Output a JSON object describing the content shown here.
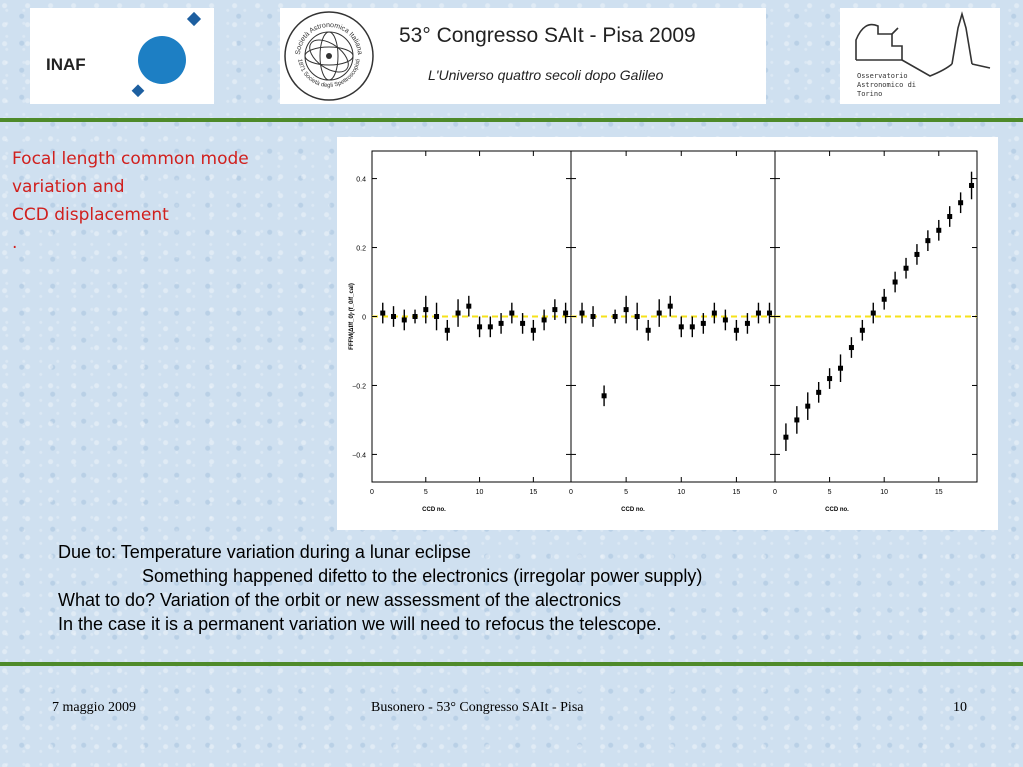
{
  "header": {
    "inaf_logo_text": "INAF",
    "conference_title": "53° Congresso SAIt - Pisa 2009",
    "conference_subtitle": "L'Universo quattro secoli dopo Galileo",
    "seal_text_top": "Società Astronomica Italiana",
    "seal_text_bottom": "1871 Società degli Spettroscopisti",
    "observatory_lines": [
      "Osservatorio",
      "Astronomico di",
      "Torino"
    ]
  },
  "slide": {
    "title_lines": [
      "Focal length common mode",
      "variation and",
      "CCD displacement",
      "."
    ]
  },
  "notes": {
    "lines": [
      "Due to:  Temperature variation during a lunar eclipse",
      "Something happened difetto to the electronics (irregolar power supply)",
      "What to do? Variation of the orbit or new assessment of the alectronics",
      "In the case it is a permanent variation we will need to refocus the telescope."
    ]
  },
  "footer": {
    "date": "7 maggio 2009",
    "center": "Busonero  -  53° Congresso SAIt - Pisa",
    "page": "10"
  },
  "colors": {
    "separator": "#4e8a2a",
    "title_red": "#d0201e",
    "reference_line": "#f5e21a",
    "logo_blue": "#1d7fc4"
  },
  "chart_data": {
    "type": "scatter",
    "layout": "three panels side by side, shared y axis",
    "xlabel": "CCD no.",
    "ylabel": "FFFM(Δf/f_0)·(f_0/f_cal)",
    "xlim": [
      0,
      18.5
    ],
    "ylim": [
      -0.48,
      0.48
    ],
    "x_ticks": [
      0,
      5,
      10,
      15
    ],
    "y_ticks": [
      -0.4,
      -0.2,
      0,
      0.2,
      0.4
    ],
    "y_tick_labels": [
      "−0.4",
      "−0.2",
      "0",
      "0.2",
      "0.4"
    ],
    "reference_line": {
      "y": 0,
      "style": "dashed"
    },
    "panels": [
      {
        "x": [
          1,
          2,
          3,
          4,
          5,
          6,
          7,
          8,
          9,
          10,
          11,
          12,
          13,
          14,
          15,
          16,
          17,
          18
        ],
        "y": [
          0.01,
          0.0,
          -0.01,
          0.0,
          0.02,
          0.0,
          -0.04,
          0.01,
          0.03,
          -0.03,
          -0.03,
          -0.02,
          0.01,
          -0.02,
          -0.04,
          -0.01,
          0.02,
          0.01
        ],
        "err": [
          0.03,
          0.03,
          0.03,
          0.02,
          0.04,
          0.04,
          0.03,
          0.04,
          0.03,
          0.03,
          0.03,
          0.03,
          0.03,
          0.03,
          0.03,
          0.03,
          0.03,
          0.03
        ]
      },
      {
        "x": [
          1,
          2,
          3,
          4,
          5,
          6,
          7,
          8,
          9,
          10,
          11,
          12,
          13,
          14,
          15,
          16,
          17,
          18
        ],
        "y": [
          0.01,
          0.0,
          -0.23,
          0.0,
          0.02,
          0.0,
          -0.04,
          0.01,
          0.03,
          -0.03,
          -0.03,
          -0.02,
          0.01,
          -0.01,
          -0.04,
          -0.02,
          0.01,
          0.01
        ],
        "err": [
          0.03,
          0.03,
          0.03,
          0.02,
          0.04,
          0.04,
          0.03,
          0.04,
          0.03,
          0.03,
          0.03,
          0.03,
          0.03,
          0.03,
          0.03,
          0.03,
          0.03,
          0.03
        ]
      },
      {
        "x": [
          1,
          2,
          3,
          4,
          5,
          6,
          7,
          8,
          9,
          10,
          11,
          12,
          13,
          14,
          15,
          16,
          17,
          18
        ],
        "y": [
          -0.35,
          -0.3,
          -0.26,
          -0.22,
          -0.18,
          -0.15,
          -0.09,
          -0.04,
          0.01,
          0.05,
          0.1,
          0.14,
          0.18,
          0.22,
          0.25,
          0.29,
          0.33,
          0.38
        ],
        "err": [
          0.04,
          0.04,
          0.04,
          0.03,
          0.03,
          0.04,
          0.03,
          0.03,
          0.03,
          0.03,
          0.03,
          0.03,
          0.03,
          0.03,
          0.03,
          0.03,
          0.03,
          0.04
        ]
      }
    ]
  }
}
